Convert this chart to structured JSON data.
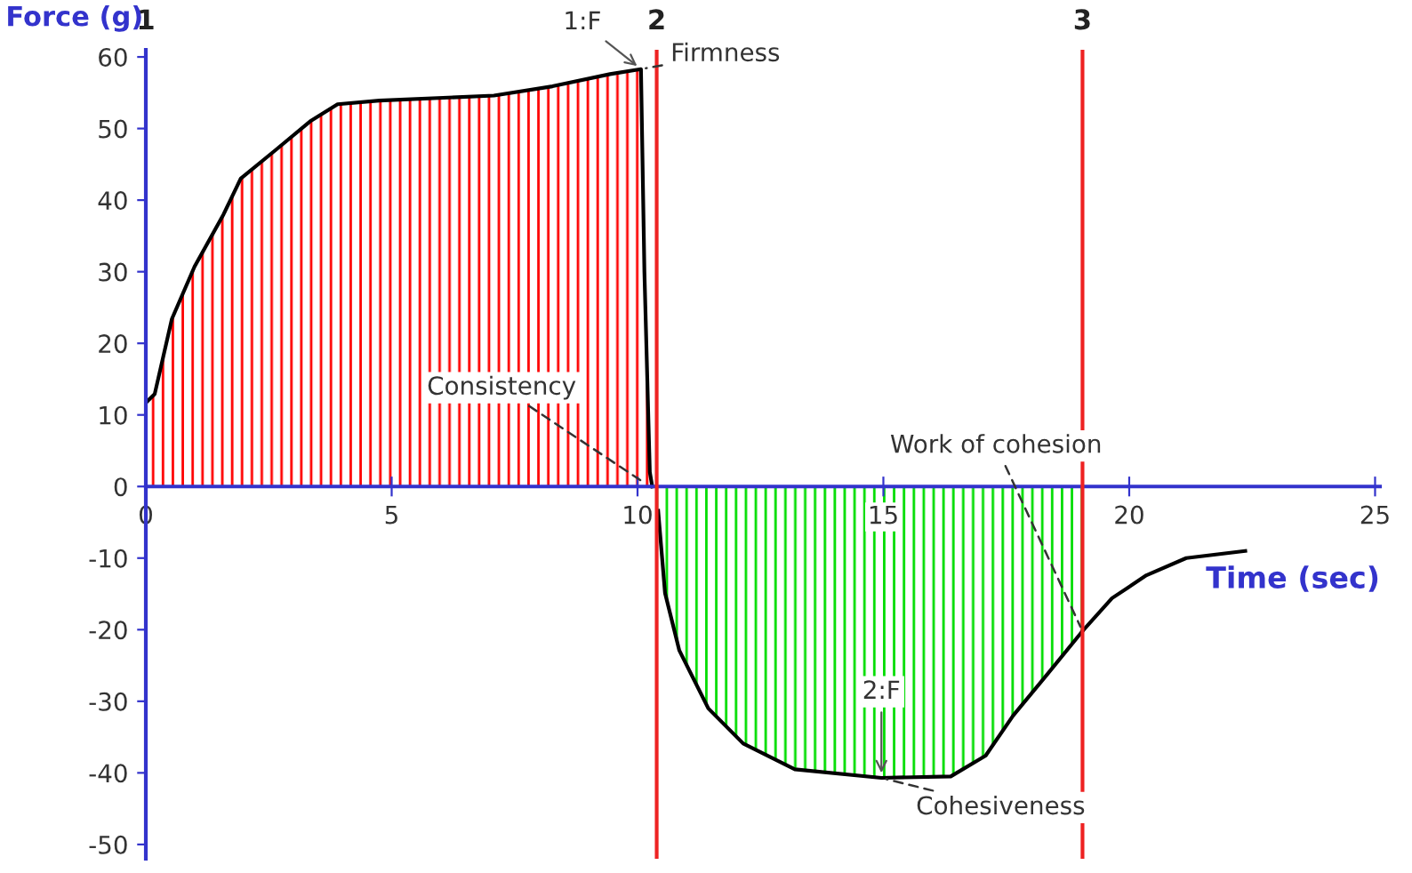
{
  "chart_data": {
    "type": "area",
    "xlabel": "Time (sec)",
    "ylabel": "Force (g)",
    "xlim": [
      0,
      25.1
    ],
    "ylim": [
      -52,
      61
    ],
    "xticks": [
      0,
      5,
      10,
      15,
      20,
      25
    ],
    "yticks": [
      -50,
      -40,
      -30,
      -20,
      -10,
      0,
      10,
      20,
      30,
      40,
      50,
      60
    ],
    "grid": false,
    "series": [
      {
        "color": "#ff0000",
        "x": [
          0,
          0.18,
          0.53,
          0.99,
          1.58,
          1.93,
          2.64,
          3.34,
          3.9,
          4.75,
          7.08,
          8.27,
          9.44,
          10.07,
          10.14,
          10.25,
          10.3
        ],
        "values": [
          11.7,
          12.9,
          23.4,
          30.7,
          38,
          43,
          47,
          51,
          53.4,
          53.9,
          54.6,
          55.9,
          57.6,
          58.3,
          30,
          2,
          0
        ]
      },
      {
        "color": "#00dd00",
        "x": [
          10.42,
          10.56,
          10.85,
          11.44,
          12.15,
          13.2,
          14.96,
          16.37,
          17.08,
          17.64,
          18.35,
          19.05
        ],
        "values": [
          -3.4,
          -14.9,
          -22.9,
          -31,
          -35.9,
          -39.5,
          -40.7,
          -40.5,
          -37.6,
          -32,
          -26.1,
          -20.2
        ]
      },
      {
        "type": "line",
        "color": "#000000",
        "x": [
          19.05,
          19.65,
          20.35,
          21.16,
          22.36
        ],
        "values": [
          -20.2,
          -15.6,
          -12.4,
          -10,
          -9
        ]
      }
    ],
    "ref_lines": [
      {
        "axis": "x",
        "value": 10.39,
        "color": "#ee2222"
      },
      {
        "axis": "x",
        "value": 19.05,
        "color": "#ee2222"
      }
    ],
    "annotations": [
      "1",
      "2",
      "3",
      {
        "text": "1:F",
        "x": 10.07,
        "y": 58.3
      },
      {
        "text": "Firmness",
        "x": 10.07,
        "y": 58.3
      },
      {
        "text": "Consistency",
        "x": 10.25,
        "y": 0
      },
      {
        "text": "Work of cohesion",
        "x": 19.05,
        "y": -20.2
      },
      {
        "text": "2:F",
        "x": 14.96,
        "y": -40.7
      },
      {
        "text": "Cohesiveness",
        "x": 14.96,
        "y": -40.7
      }
    ]
  }
}
